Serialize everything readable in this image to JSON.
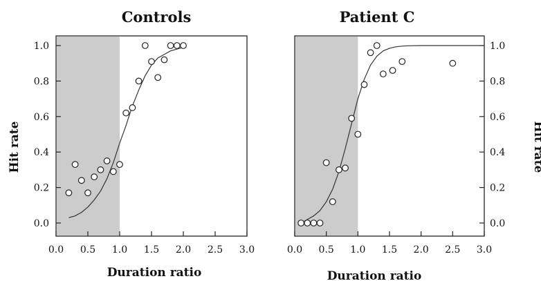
{
  "chart_data": [
    {
      "type": "scatter",
      "title": "Controls",
      "xlabel": "Duration ratio",
      "ylabel": "Hit rate",
      "ylabel_side": "left",
      "xlim": [
        0,
        3
      ],
      "ylim": [
        0,
        1
      ],
      "xticks": [
        "0.0",
        "0.5",
        "1.0",
        "1.5",
        "2.0",
        "2.5",
        "3.0"
      ],
      "yticks": [
        "0.0",
        "0.2",
        "0.4",
        "0.6",
        "0.8",
        "1.0"
      ],
      "shaded_region": [
        0,
        1
      ],
      "shade_color": "#cccccc",
      "points": [
        [
          0.2,
          0.17
        ],
        [
          0.3,
          0.33
        ],
        [
          0.4,
          0.24
        ],
        [
          0.5,
          0.17
        ],
        [
          0.6,
          0.26
        ],
        [
          0.7,
          0.3
        ],
        [
          0.8,
          0.35
        ],
        [
          0.9,
          0.29
        ],
        [
          1.0,
          0.33
        ],
        [
          1.1,
          0.62
        ],
        [
          1.2,
          0.65
        ],
        [
          1.3,
          0.8
        ],
        [
          1.4,
          1.0
        ],
        [
          1.5,
          0.91
        ],
        [
          1.6,
          0.82
        ],
        [
          1.7,
          0.92
        ],
        [
          1.8,
          1.0
        ],
        [
          1.9,
          1.0
        ],
        [
          2.0,
          1.0
        ]
      ],
      "fit_curve": [
        [
          0.2,
          0.03
        ],
        [
          0.3,
          0.04
        ],
        [
          0.4,
          0.06
        ],
        [
          0.5,
          0.09
        ],
        [
          0.6,
          0.13
        ],
        [
          0.7,
          0.18
        ],
        [
          0.8,
          0.25
        ],
        [
          0.9,
          0.34
        ],
        [
          1.0,
          0.45
        ],
        [
          1.1,
          0.55
        ],
        [
          1.2,
          0.66
        ],
        [
          1.3,
          0.75
        ],
        [
          1.4,
          0.83
        ],
        [
          1.5,
          0.89
        ],
        [
          1.6,
          0.93
        ],
        [
          1.7,
          0.95
        ],
        [
          1.8,
          0.97
        ],
        [
          1.9,
          0.98
        ],
        [
          2.0,
          0.99
        ]
      ]
    },
    {
      "type": "scatter",
      "title": "Patient C",
      "xlabel": "Duration ratio",
      "ylabel": "Hit rate",
      "ylabel_side": "right",
      "xlim": [
        0,
        3
      ],
      "ylim": [
        0,
        1
      ],
      "xticks": [
        "0.0",
        "0.5",
        "1.0",
        "1.5",
        "2.0",
        "2.5",
        "3.0"
      ],
      "yticks": [
        "0.0",
        "0.2",
        "0.4",
        "0.6",
        "0.8",
        "1.0"
      ],
      "shaded_region": [
        0,
        1
      ],
      "shade_color": "#cccccc",
      "points": [
        [
          0.1,
          0.0
        ],
        [
          0.2,
          0.0
        ],
        [
          0.3,
          0.0
        ],
        [
          0.4,
          0.0
        ],
        [
          0.5,
          0.34
        ],
        [
          0.6,
          0.12
        ],
        [
          0.7,
          0.3
        ],
        [
          0.8,
          0.31
        ],
        [
          0.9,
          0.59
        ],
        [
          1.0,
          0.5
        ],
        [
          1.1,
          0.78
        ],
        [
          1.2,
          0.96
        ],
        [
          1.3,
          1.0
        ],
        [
          1.4,
          0.84
        ],
        [
          1.55,
          0.86
        ],
        [
          1.7,
          0.91
        ],
        [
          2.5,
          0.9
        ]
      ],
      "fit_curve": [
        [
          0.15,
          0.01
        ],
        [
          0.2,
          0.02
        ],
        [
          0.3,
          0.04
        ],
        [
          0.4,
          0.07
        ],
        [
          0.5,
          0.12
        ],
        [
          0.6,
          0.19
        ],
        [
          0.7,
          0.29
        ],
        [
          0.8,
          0.42
        ],
        [
          0.9,
          0.56
        ],
        [
          1.0,
          0.7
        ],
        [
          1.1,
          0.81
        ],
        [
          1.2,
          0.89
        ],
        [
          1.3,
          0.94
        ],
        [
          1.4,
          0.97
        ],
        [
          1.5,
          0.985
        ],
        [
          1.6,
          0.993
        ],
        [
          1.7,
          0.997
        ],
        [
          1.8,
          0.999
        ],
        [
          2.0,
          1.0
        ],
        [
          2.5,
          1.0
        ],
        [
          3.0,
          1.0
        ]
      ]
    }
  ]
}
